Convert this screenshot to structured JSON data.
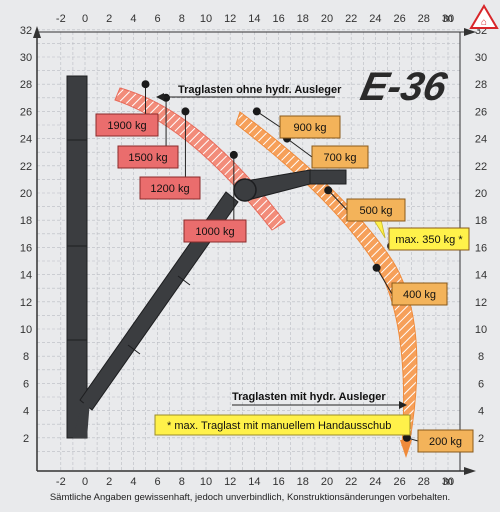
{
  "title": "E-36",
  "unit_x": "m",
  "unit_y": "m",
  "x_ticks": [
    "-2",
    "0",
    "2",
    "4",
    "6",
    "8",
    "10",
    "12",
    "14",
    "16",
    "18",
    "20",
    "22",
    "24",
    "26",
    "28",
    "30"
  ],
  "y_ticks": [
    "2",
    "4",
    "6",
    "8",
    "10",
    "12",
    "14",
    "16",
    "18",
    "20",
    "22",
    "24",
    "26",
    "28",
    "30",
    "32"
  ],
  "caption_top": "Traglasten ohne hydr. Ausleger",
  "caption_bottom": "Traglasten mit hydr. Ausleger",
  "note": "* max. Traglast mit manuellem Handausschub",
  "footer": "Sämtliche Angaben gewissenhaft, jedoch unverbindlich, Konstruktionsänderungen vorbehalten.",
  "colors": {
    "red_label": "#ea6d6d",
    "orange_label": "#f3b35a",
    "yellow_note": "#fff14a",
    "crane": "#3b3d40",
    "logo": "#d8262a"
  },
  "chart_data": {
    "type": "diagram",
    "xlim": [
      -3,
      31
    ],
    "ylim": [
      0,
      33
    ],
    "loads_without_extension": [
      {
        "label": "1900 kg",
        "x": 5.0,
        "y": 28.0
      },
      {
        "label": "1500 kg",
        "x": 6.7,
        "y": 27.0
      },
      {
        "label": "1200 kg",
        "x": 8.3,
        "y": 26.0
      },
      {
        "label": "1000 kg",
        "x": 12.3,
        "y": 22.8
      }
    ],
    "loads_with_extension": [
      {
        "label": "900 kg",
        "x": 14.2,
        "y": 26.0
      },
      {
        "label": "700 kg",
        "x": 16.7,
        "y": 24.0
      },
      {
        "label": "500 kg",
        "x": 20.1,
        "y": 20.2
      },
      {
        "label": "max. 350 kg *",
        "x": 25.3,
        "y": 16.1
      },
      {
        "label": "400 kg",
        "x": 24.1,
        "y": 14.5
      },
      {
        "label": "200 kg",
        "x": 26.6,
        "y": 2.0
      }
    ]
  }
}
